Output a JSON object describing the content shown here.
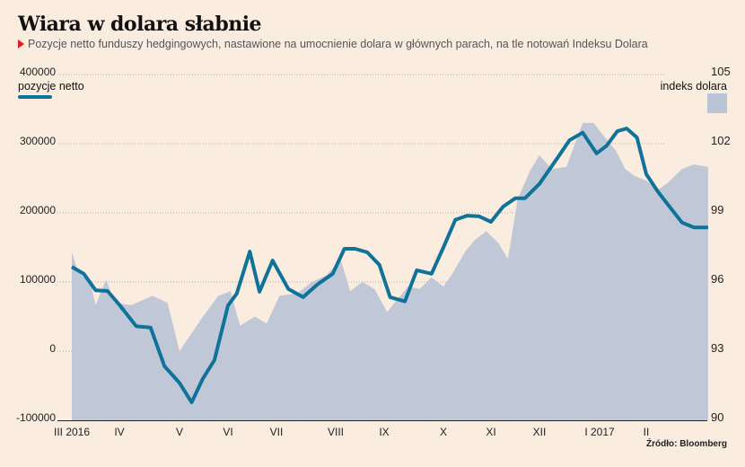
{
  "header": {
    "title": "Wiara w dolara słabnie",
    "subtitle": "Pozycje netto funduszy hedgingowych, nastawione na umocnienie dolara w głównych parach, na tle notowań Indeksu Dolara",
    "bullet_color": "#e0201c"
  },
  "footer": {
    "source": "Źródło: Bloomberg"
  },
  "chart_data": {
    "type": "line",
    "title": "Wiara w dolara słabnie",
    "subtitle": "Pozycje netto funduszy hedgingowych, nastawione na umocnienie dolara w głównych parach, na tle notowań Indeksu Dolara",
    "x_unit": "months since start of March 2016",
    "xlim": [
      0,
      12.8
    ],
    "x_ticks": [
      {
        "label": "III 2016",
        "x": 0
      },
      {
        "label": "IV",
        "x": 1
      },
      {
        "label": "V",
        "x": 2
      },
      {
        "label": "VI",
        "x": 3
      },
      {
        "label": "VII",
        "x": 4
      },
      {
        "label": "VIII",
        "x": 5
      },
      {
        "label": "IX",
        "x": 6
      },
      {
        "label": "X",
        "x": 7
      },
      {
        "label": "XI",
        "x": 8
      },
      {
        "label": "XII",
        "x": 9
      },
      {
        "label": "I 2017",
        "x": 10
      },
      {
        "label": "II",
        "x": 11
      }
    ],
    "y_left": {
      "label": "pozycje netto",
      "ylim": [
        -100000,
        400000
      ],
      "ticks": [
        400000,
        300000,
        200000,
        100000,
        0,
        -100000
      ],
      "tick_labels": [
        "400000",
        "300000",
        "200000",
        "100000",
        "0",
        "-100000"
      ]
    },
    "y_right": {
      "label": "indeks dolara",
      "ylim": [
        90,
        105
      ],
      "ticks": [
        105,
        102,
        99,
        96,
        93,
        90
      ],
      "tick_labels": [
        "105",
        "102",
        "99",
        "96",
        "93",
        "90"
      ]
    },
    "grid": true,
    "series": [
      {
        "name": "pozycje netto",
        "type": "line",
        "axis": "left",
        "color": "#0f7299",
        "points": [
          [
            0.0,
            122000
          ],
          [
            0.25,
            112000
          ],
          [
            0.5,
            88000
          ],
          [
            0.75,
            87000
          ],
          [
            1.0,
            67000
          ],
          [
            1.28,
            36000
          ],
          [
            1.52,
            34000
          ],
          [
            1.75,
            -22000
          ],
          [
            2.0,
            -46000
          ],
          [
            2.25,
            -74000
          ],
          [
            2.48,
            -40000
          ],
          [
            2.72,
            -13000
          ],
          [
            3.0,
            66000
          ],
          [
            3.18,
            83000
          ],
          [
            3.45,
            144000
          ],
          [
            3.65,
            86000
          ],
          [
            3.92,
            131000
          ],
          [
            4.2,
            90000
          ],
          [
            4.45,
            78000
          ],
          [
            4.7,
            97000
          ],
          [
            4.95,
            112000
          ],
          [
            5.18,
            148000
          ],
          [
            5.4,
            148000
          ],
          [
            5.65,
            143000
          ],
          [
            5.9,
            125000
          ],
          [
            6.1,
            78000
          ],
          [
            6.35,
            72000
          ],
          [
            6.55,
            117000
          ],
          [
            6.8,
            112000
          ],
          [
            7.0,
            150000
          ],
          [
            7.25,
            190000
          ],
          [
            7.5,
            196000
          ],
          [
            7.75,
            195000
          ],
          [
            8.0,
            187000
          ],
          [
            8.25,
            209000
          ],
          [
            8.5,
            221000
          ],
          [
            8.7,
            221000
          ],
          [
            9.0,
            242000
          ],
          [
            9.28,
            277000
          ],
          [
            9.5,
            305000
          ],
          [
            9.72,
            316000
          ],
          [
            9.95,
            286000
          ],
          [
            10.15,
            297000
          ],
          [
            10.38,
            318000
          ],
          [
            10.58,
            322000
          ],
          [
            10.8,
            309000
          ],
          [
            11.0,
            256000
          ],
          [
            11.25,
            230000
          ],
          [
            11.5,
            208000
          ],
          [
            11.75,
            186000
          ],
          [
            12.0,
            179000
          ],
          [
            12.3,
            179000
          ]
        ]
      },
      {
        "name": "indeks dolara",
        "type": "area",
        "axis": "right",
        "color": "#c0c7d6",
        "points": [
          [
            0.0,
            97.3
          ],
          [
            0.12,
            96.5
          ],
          [
            0.4,
            95.9
          ],
          [
            0.5,
            95.0
          ],
          [
            0.72,
            96.1
          ],
          [
            0.9,
            95.1
          ],
          [
            1.2,
            95.0
          ],
          [
            1.55,
            95.4
          ],
          [
            1.8,
            95.1
          ],
          [
            2.0,
            93.0
          ],
          [
            2.45,
            94.4
          ],
          [
            2.8,
            95.4
          ],
          [
            3.05,
            95.6
          ],
          [
            3.25,
            94.1
          ],
          [
            3.55,
            94.5
          ],
          [
            3.8,
            94.2
          ],
          [
            4.05,
            95.4
          ],
          [
            4.35,
            95.5
          ],
          [
            4.6,
            96.0
          ],
          [
            4.85,
            96.3
          ],
          [
            5.1,
            97.0
          ],
          [
            5.3,
            95.6
          ],
          [
            5.55,
            96.0
          ],
          [
            5.8,
            95.7
          ],
          [
            6.05,
            94.7
          ],
          [
            6.4,
            95.8
          ],
          [
            6.6,
            95.7
          ],
          [
            6.8,
            96.2
          ],
          [
            7.0,
            95.8
          ],
          [
            7.2,
            96.4
          ],
          [
            7.45,
            97.3
          ],
          [
            7.65,
            97.8
          ],
          [
            7.9,
            98.2
          ],
          [
            8.15,
            97.7
          ],
          [
            8.35,
            97.0
          ],
          [
            8.55,
            99.6
          ],
          [
            8.8,
            100.8
          ],
          [
            9.0,
            101.5
          ],
          [
            9.2,
            100.9
          ],
          [
            9.45,
            101.0
          ],
          [
            9.72,
            102.9
          ],
          [
            9.9,
            102.9
          ],
          [
            10.1,
            102.3
          ],
          [
            10.35,
            101.7
          ],
          [
            10.55,
            100.9
          ],
          [
            10.75,
            100.6
          ],
          [
            11.0,
            100.4
          ],
          [
            11.25,
            100.0
          ],
          [
            11.45,
            100.3
          ],
          [
            11.75,
            100.9
          ],
          [
            12.0,
            101.1
          ],
          [
            12.3,
            101.0
          ]
        ]
      }
    ],
    "legend": [
      {
        "label": "pozycje netto",
        "placement": "top-left",
        "swatch": "line"
      },
      {
        "label": "indeks dolara",
        "placement": "top-right",
        "swatch": "area"
      }
    ]
  }
}
